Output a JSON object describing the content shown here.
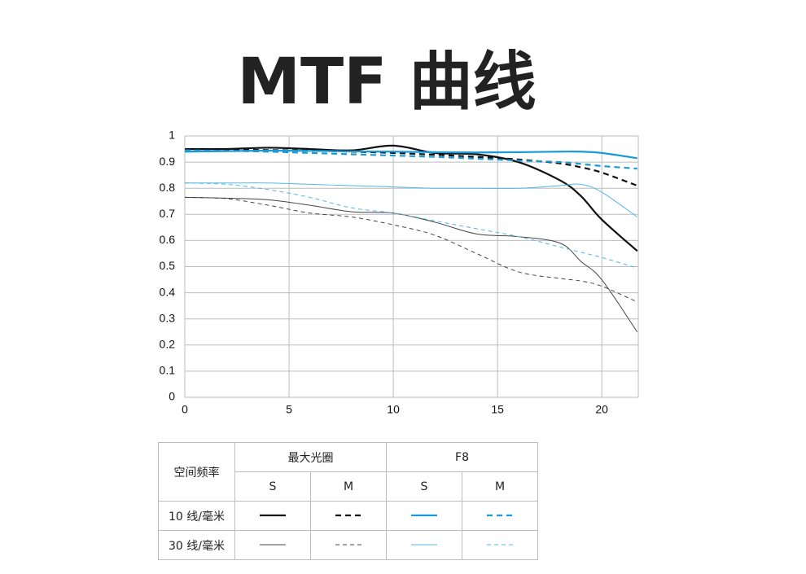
{
  "title": "MTF 曲线",
  "chart_data": {
    "type": "line",
    "x": [
      0,
      2,
      4,
      6,
      8,
      10,
      12,
      14,
      16,
      18,
      19,
      20,
      21.7
    ],
    "xlim": [
      0,
      21.75
    ],
    "ylim": [
      0,
      1
    ],
    "xticks": [
      0,
      5,
      10,
      15,
      20
    ],
    "yticks": [
      0,
      0.1,
      0.2,
      0.3,
      0.4,
      0.5,
      0.6,
      0.7,
      0.8,
      0.9,
      1
    ],
    "grid": true,
    "series": [
      {
        "color": "#111111",
        "line_style": "solid",
        "weight": "bold",
        "values": [
          0.95,
          0.95,
          0.955,
          0.95,
          0.945,
          0.963,
          0.935,
          0.93,
          0.9,
          0.83,
          0.77,
          0.68,
          0.56
        ]
      },
      {
        "color": "#111111",
        "line_style": "dashed",
        "weight": "bold",
        "values": [
          0.95,
          0.948,
          0.946,
          0.944,
          0.94,
          0.935,
          0.928,
          0.92,
          0.91,
          0.895,
          0.88,
          0.86,
          0.81
        ]
      },
      {
        "color": "#1a9ad6",
        "line_style": "solid",
        "weight": "bold",
        "values": [
          0.94,
          0.942,
          0.944,
          0.943,
          0.941,
          0.94,
          0.938,
          0.937,
          0.938,
          0.94,
          0.94,
          0.935,
          0.915
        ]
      },
      {
        "color": "#1a9ad6",
        "line_style": "dashed",
        "weight": "bold",
        "values": [
          0.945,
          0.943,
          0.94,
          0.935,
          0.93,
          0.925,
          0.92,
          0.913,
          0.906,
          0.9,
          0.893,
          0.885,
          0.875
        ]
      },
      {
        "color": "#444444",
        "line_style": "solid",
        "weight": "thin",
        "values": [
          0.765,
          0.762,
          0.756,
          0.735,
          0.71,
          0.705,
          0.67,
          0.625,
          0.615,
          0.59,
          0.52,
          0.45,
          0.25
        ]
      },
      {
        "color": "#444444",
        "line_style": "dashed",
        "weight": "thin",
        "values": [
          0.765,
          0.76,
          0.735,
          0.705,
          0.69,
          0.66,
          0.62,
          0.55,
          0.48,
          0.455,
          0.445,
          0.425,
          0.365
        ]
      },
      {
        "color": "#4fb7e6",
        "line_style": "solid",
        "weight": "thin",
        "values": [
          0.82,
          0.82,
          0.82,
          0.815,
          0.81,
          0.805,
          0.8,
          0.8,
          0.8,
          0.81,
          0.815,
          0.785,
          0.69
        ]
      },
      {
        "color": "#4fb7e6",
        "line_style": "dashed",
        "weight": "thin",
        "values": [
          0.82,
          0.815,
          0.795,
          0.765,
          0.725,
          0.705,
          0.675,
          0.645,
          0.615,
          0.575,
          0.555,
          0.535,
          0.495
        ]
      }
    ]
  },
  "legend_table": {
    "corner": "空间频率",
    "groups": [
      "最大光圈",
      "F8"
    ],
    "columns": [
      "S",
      "M",
      "S",
      "M"
    ],
    "rows": [
      "10 线/毫米",
      "30 线/毫米"
    ]
  }
}
